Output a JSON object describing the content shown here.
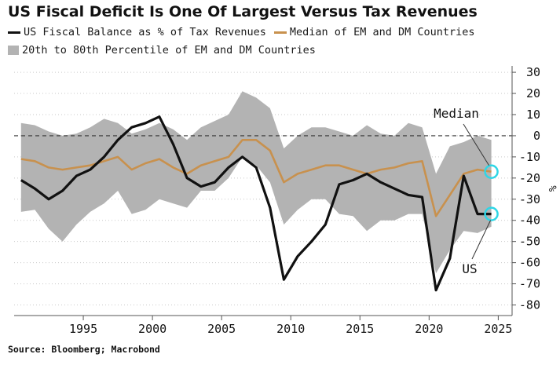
{
  "title": "US Fiscal Deficit Is One Of Largest Versus Tax Revenues",
  "source": "Source: Bloomberg; Macrobond",
  "colors": {
    "us_line": "#111111",
    "median_line": "#c8914e",
    "band": "#b3b3b3",
    "highlight": "#2fd6e6",
    "grid": "#c9c9c9"
  },
  "chart_data": {
    "type": "line",
    "xlim": [
      1990,
      2026
    ],
    "ylim": [
      -85,
      33
    ],
    "x_ticks": [
      1995,
      2000,
      2005,
      2010,
      2015,
      2020,
      2025
    ],
    "y_ticks": [
      30,
      20,
      10,
      0,
      -10,
      -20,
      -30,
      -40,
      -50,
      -60,
      -70,
      -80
    ],
    "ylabel": "%",
    "grid": "horizontal dotted",
    "legend_position": "top-left",
    "series": [
      {
        "name": "US Fiscal Balance as % of Tax Revenues",
        "color": "#111111",
        "x": [
          1990.5,
          1991.5,
          1992.5,
          1993.5,
          1994.5,
          1995.5,
          1996.5,
          1997.5,
          1998.5,
          1999.5,
          2000.5,
          2001.5,
          2002.5,
          2003.5,
          2004.5,
          2005.5,
          2006.5,
          2007.5,
          2008.5,
          2009.5,
          2010.5,
          2011.5,
          2012.5,
          2013.5,
          2014.5,
          2015.5,
          2016.5,
          2017.5,
          2018.5,
          2019.5,
          2020.5,
          2021.5,
          2022.5,
          2023.5,
          2024.5
        ],
        "values": [
          -21,
          -25,
          -30,
          -26,
          -19,
          -16,
          -10,
          -2,
          4,
          6,
          9,
          -4,
          -20,
          -24,
          -22,
          -15,
          -10,
          -15,
          -34,
          -68,
          -57,
          -50,
          -42,
          -23,
          -21,
          -18,
          -22,
          -25,
          -28,
          -29,
          -73,
          -58,
          -19,
          -37,
          -37
        ]
      },
      {
        "name": "Median of EM and DM Countries",
        "color": "#c8914e",
        "x": [
          1990.5,
          1991.5,
          1992.5,
          1993.5,
          1994.5,
          1995.5,
          1996.5,
          1997.5,
          1998.5,
          1999.5,
          2000.5,
          2001.5,
          2002.5,
          2003.5,
          2004.5,
          2005.5,
          2006.5,
          2007.5,
          2008.5,
          2009.5,
          2010.5,
          2011.5,
          2012.5,
          2013.5,
          2014.5,
          2015.5,
          2016.5,
          2017.5,
          2018.5,
          2019.5,
          2020.5,
          2021.5,
          2022.5,
          2023.5,
          2024.5
        ],
        "values": [
          -11,
          -12,
          -15,
          -16,
          -15,
          -14,
          -12,
          -10,
          -16,
          -13,
          -11,
          -15,
          -18,
          -14,
          -12,
          -10,
          -2,
          -2,
          -7,
          -22,
          -18,
          -16,
          -14,
          -14,
          -16,
          -18,
          -16,
          -15,
          -13,
          -12,
          -38,
          -28,
          -18,
          -16,
          -17
        ]
      }
    ],
    "band": {
      "name": "20th to 80th Percentile of EM and DM Countries",
      "color": "#b3b3b3",
      "x": [
        1990.5,
        1991.5,
        1992.5,
        1993.5,
        1994.5,
        1995.5,
        1996.5,
        1997.5,
        1998.5,
        1999.5,
        2000.5,
        2001.5,
        2002.5,
        2003.5,
        2004.5,
        2005.5,
        2006.5,
        2007.5,
        2008.5,
        2009.5,
        2010.5,
        2011.5,
        2012.5,
        2013.5,
        2014.5,
        2015.5,
        2016.5,
        2017.5,
        2018.5,
        2019.5,
        2020.5,
        2021.5,
        2022.5,
        2023.5,
        2024.5
      ],
      "upper": [
        6,
        5,
        2,
        0,
        1,
        4,
        8,
        6,
        1,
        3,
        6,
        3,
        -2,
        4,
        7,
        10,
        21,
        18,
        13,
        -6,
        0,
        4,
        4,
        2,
        0,
        5,
        1,
        0,
        6,
        4,
        -18,
        -5,
        -3,
        0,
        -2
      ],
      "lower": [
        -36,
        -35,
        -44,
        -50,
        -42,
        -36,
        -32,
        -26,
        -37,
        -35,
        -30,
        -32,
        -34,
        -26,
        -26,
        -20,
        -10,
        -14,
        -22,
        -42,
        -35,
        -30,
        -30,
        -37,
        -38,
        -45,
        -40,
        -40,
        -37,
        -37,
        -65,
        -54,
        -45,
        -46,
        -43
      ]
    },
    "annotations": [
      {
        "text": "Median",
        "x": 2024.5,
        "y": -17
      },
      {
        "text": "US",
        "x": 2024.5,
        "y": -37
      }
    ]
  }
}
